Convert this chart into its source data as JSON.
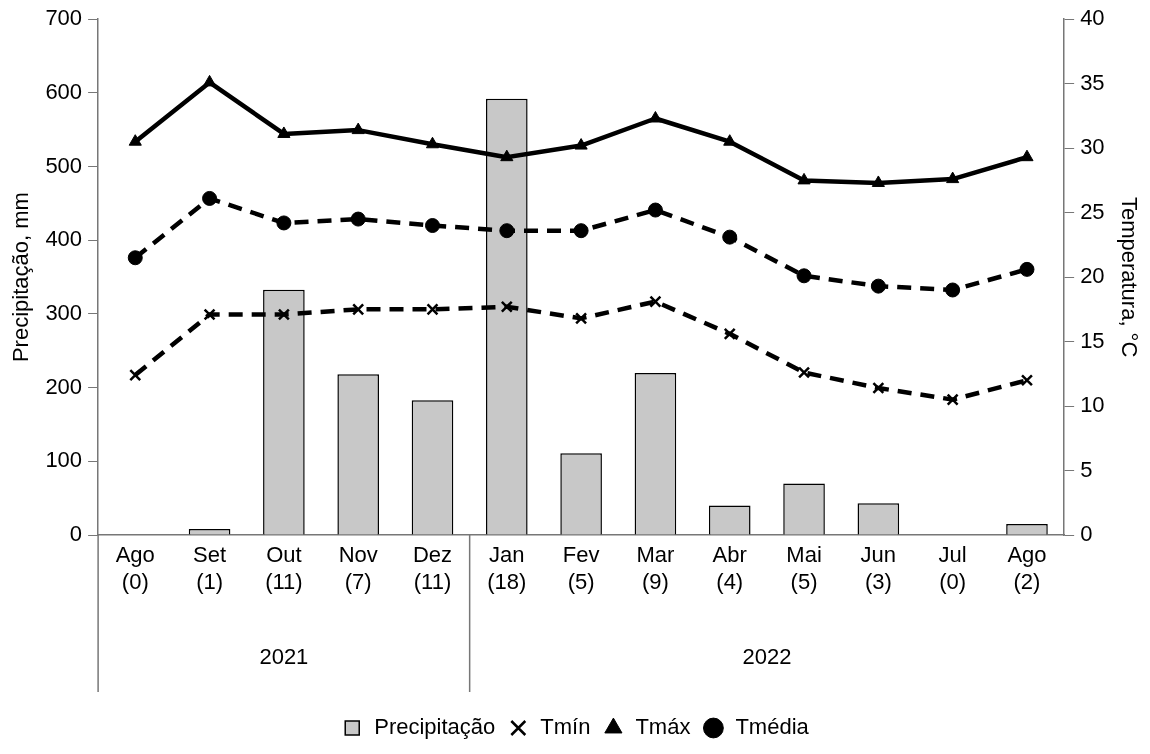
{
  "chart_data": {
    "type": "bar",
    "ylabel": "Precipitação, mm",
    "y2label": "Temperatura, °C",
    "categories": [
      "Ago (0)",
      "Set (1)",
      "Out (11)",
      "Nov (7)",
      "Dez (11)",
      "Jan (18)",
      "Fev (5)",
      "Mar (9)",
      "Abr (4)",
      "Mai (5)",
      "Jun (3)",
      "Jul (0)",
      "Ago (2)"
    ],
    "series": [
      {
        "name": "Precipitação",
        "color": "#c8c8c8",
        "values": [
          0,
          8,
          333,
          218,
          183,
          592,
          111,
          220,
          40,
          70,
          43,
          0,
          15
        ]
      },
      {
        "name": "Tmín",
        "type": "line",
        "axis": "y2",
        "color": "#000000",
        "marker": "cross",
        "line_style": "dashed",
        "values": [
          12.4,
          17.1,
          17.1,
          17.5,
          17.5,
          17.7,
          16.8,
          18.1,
          15.6,
          12.6,
          11.4,
          10.5,
          12.0
        ]
      },
      {
        "name": "Tmáx",
        "type": "line",
        "axis": "y2",
        "color": "#000000",
        "marker": "triangle",
        "line_style": "solid",
        "values": [
          30.5,
          35.1,
          31.1,
          31.4,
          30.3,
          29.3,
          30.2,
          32.3,
          30.5,
          27.5,
          27.3,
          27.6,
          29.3
        ]
      },
      {
        "name": "Tmédia",
        "type": "line",
        "axis": "y2",
        "color": "#000000",
        "marker": "circle",
        "line_style": "dashed",
        "values": [
          21.5,
          26.1,
          24.2,
          24.5,
          24.0,
          23.6,
          23.6,
          25.2,
          23.1,
          20.1,
          19.3,
          19.0,
          20.6
        ]
      }
    ],
    "ylim": [
      0,
      700
    ],
    "yticks": [
      0,
      100,
      200,
      300,
      400,
      500,
      600,
      700
    ],
    "y2lim": [
      0,
      40
    ],
    "y2ticks": [
      0,
      5,
      10,
      15,
      20,
      25,
      30,
      35,
      40
    ],
    "annotations": [
      "2021",
      "2022"
    ],
    "grid": false,
    "legend": "bottom"
  }
}
